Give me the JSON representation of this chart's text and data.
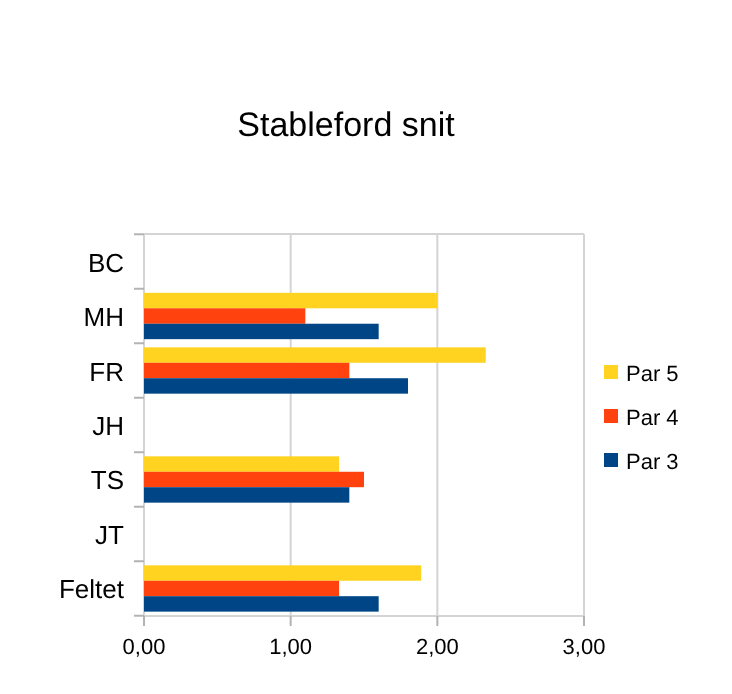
{
  "chart_data": {
    "type": "bar",
    "orientation": "horizontal",
    "title": "Stableford snit",
    "categories": [
      "BC",
      "MH",
      "FR",
      "JH",
      "TS",
      "JT",
      "Feltet"
    ],
    "series": [
      {
        "name": "Par 5",
        "color": "#ffd320",
        "values": [
          null,
          2.0,
          2.33,
          null,
          1.33,
          null,
          1.89
        ]
      },
      {
        "name": "Par 4",
        "color": "#ff420e",
        "values": [
          null,
          1.1,
          1.4,
          null,
          1.5,
          null,
          1.33
        ]
      },
      {
        "name": "Par 3",
        "color": "#004586",
        "values": [
          null,
          1.6,
          1.8,
          null,
          1.4,
          null,
          1.6
        ]
      }
    ],
    "xlim": [
      0,
      3
    ],
    "xticks": [
      {
        "value": 0,
        "label": "0,00"
      },
      {
        "value": 1,
        "label": "1,00"
      },
      {
        "value": 2,
        "label": "2,00"
      },
      {
        "value": 3,
        "label": "3,00"
      }
    ],
    "grid": "x",
    "legend": "right"
  }
}
